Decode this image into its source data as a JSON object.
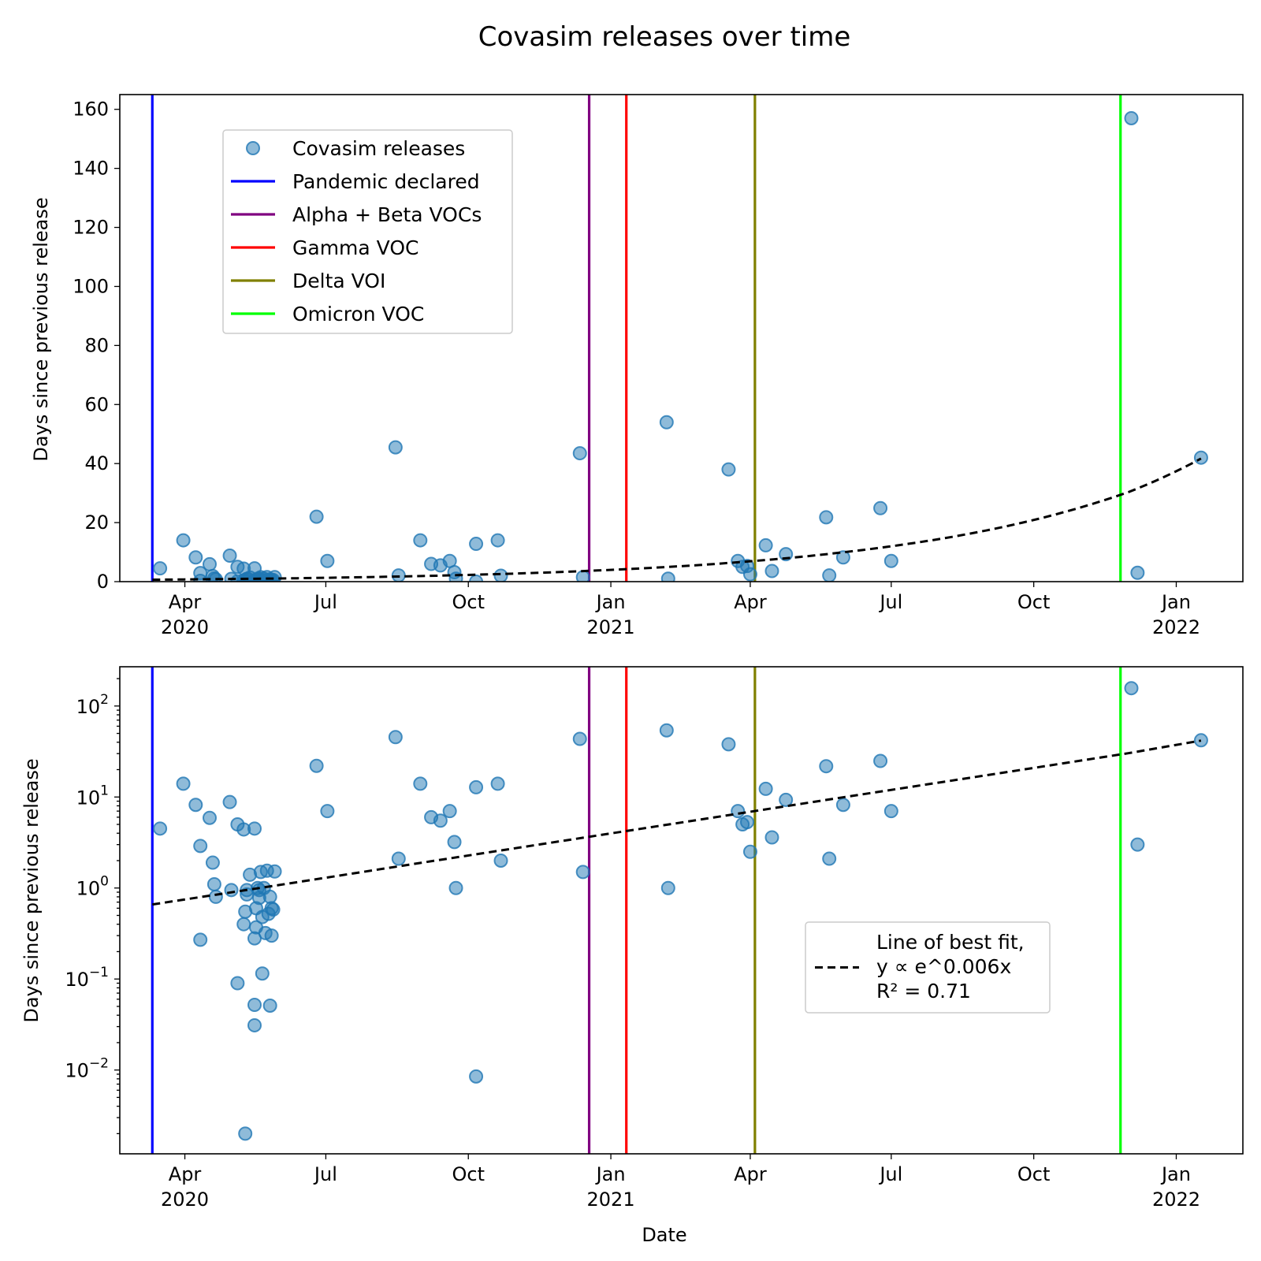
{
  "figure_title": "Covasim releases over time",
  "xlabel": "Date",
  "chart_data": [
    {
      "type": "scatter",
      "title": "",
      "ylabel": "Days since previous release",
      "yscale": "linear",
      "ylim": [
        0,
        165
      ],
      "yticks": [
        0,
        20,
        40,
        60,
        80,
        100,
        120,
        140,
        160
      ],
      "xlim": [
        "2020-02-19",
        "2022-02-13"
      ],
      "xticks": [
        {
          "date": "2020-04-01",
          "label": "Apr",
          "sublabel": "2020"
        },
        {
          "date": "2020-07-01",
          "label": "Jul",
          "sublabel": ""
        },
        {
          "date": "2020-10-01",
          "label": "Oct",
          "sublabel": ""
        },
        {
          "date": "2021-01-01",
          "label": "Jan",
          "sublabel": "2021"
        },
        {
          "date": "2021-04-01",
          "label": "Apr",
          "sublabel": ""
        },
        {
          "date": "2021-07-01",
          "label": "Jul",
          "sublabel": ""
        },
        {
          "date": "2021-10-01",
          "label": "Oct",
          "sublabel": ""
        },
        {
          "date": "2022-01-01",
          "label": "Jan",
          "sublabel": "2022"
        }
      ],
      "grid": false,
      "legend": {
        "placement": "upper-left",
        "entries": [
          {
            "label": "Covasim releases",
            "kind": "marker",
            "color": "#1f77b4"
          },
          {
            "label": "Pandemic declared",
            "kind": "line",
            "color": "#0000ff"
          },
          {
            "label": "Alpha + Beta VOCs",
            "kind": "line",
            "color": "#800080"
          },
          {
            "label": "Gamma VOC",
            "kind": "line",
            "color": "#ff0000"
          },
          {
            "label": "Delta VOI",
            "kind": "line",
            "color": "#808000"
          },
          {
            "label": "Omicron VOC",
            "kind": "line",
            "color": "#00ff00"
          }
        ]
      }
    },
    {
      "type": "scatter",
      "title": "",
      "ylabel": "Days since previous release",
      "yscale": "log",
      "ylim": [
        0.0012,
        270
      ],
      "yticks": [
        {
          "value": 0.01,
          "base": "10",
          "exp": "−2"
        },
        {
          "value": 0.1,
          "base": "10",
          "exp": "−1"
        },
        {
          "value": 1,
          "base": "10",
          "exp": "0"
        },
        {
          "value": 10,
          "base": "10",
          "exp": "1"
        },
        {
          "value": 100,
          "base": "10",
          "exp": "2"
        }
      ],
      "xlim": [
        "2020-02-19",
        "2022-02-13"
      ],
      "xticks": [
        {
          "date": "2020-04-01",
          "label": "Apr",
          "sublabel": "2020"
        },
        {
          "date": "2020-07-01",
          "label": "Jul",
          "sublabel": ""
        },
        {
          "date": "2020-10-01",
          "label": "Oct",
          "sublabel": ""
        },
        {
          "date": "2021-01-01",
          "label": "Jan",
          "sublabel": "2021"
        },
        {
          "date": "2021-04-01",
          "label": "Apr",
          "sublabel": ""
        },
        {
          "date": "2021-07-01",
          "label": "Jul",
          "sublabel": ""
        },
        {
          "date": "2021-10-01",
          "label": "Oct",
          "sublabel": ""
        },
        {
          "date": "2022-01-01",
          "label": "Jan",
          "sublabel": "2022"
        }
      ],
      "grid": false,
      "legend": {
        "placement": "lower-right",
        "entries": [
          {
            "label": "Line of best fit,\ny ∝ e^0.006x\nR² = 0.71",
            "kind": "dashed-line",
            "color": "#000000"
          }
        ]
      }
    }
  ],
  "events": [
    {
      "date": "2020-03-11",
      "color": "#0000ff"
    },
    {
      "date": "2020-12-18",
      "color": "#800080"
    },
    {
      "date": "2021-01-11",
      "color": "#ff0000"
    },
    {
      "date": "2021-04-04",
      "color": "#808000"
    },
    {
      "date": "2021-11-26",
      "color": "#00ff00"
    }
  ],
  "fit": {
    "points": [
      {
        "x": "2020-03-11",
        "y": 0.66
      },
      {
        "x": "2020-06-01",
        "y": 1.08
      },
      {
        "x": "2020-09-01",
        "y": 1.9
      },
      {
        "x": "2020-12-01",
        "y": 3.3
      },
      {
        "x": "2021-03-01",
        "y": 5.7
      },
      {
        "x": "2021-06-01",
        "y": 10.0
      },
      {
        "x": "2021-09-01",
        "y": 17.4
      },
      {
        "x": "2021-12-01",
        "y": 30.3
      },
      {
        "x": "2022-01-17",
        "y": 41.7
      }
    ]
  },
  "releases": [
    {
      "x": "2020-03-16",
      "y": 4.5
    },
    {
      "x": "2020-03-31",
      "y": 14.0
    },
    {
      "x": "2020-04-08",
      "y": 8.2
    },
    {
      "x": "2020-04-11",
      "y": 2.9
    },
    {
      "x": "2020-04-11",
      "y": 0.27
    },
    {
      "x": "2020-04-17",
      "y": 5.9
    },
    {
      "x": "2020-04-19",
      "y": 1.9
    },
    {
      "x": "2020-04-20",
      "y": 1.1
    },
    {
      "x": "2020-04-21",
      "y": 0.8
    },
    {
      "x": "2020-04-30",
      "y": 8.8
    },
    {
      "x": "2020-05-01",
      "y": 0.95
    },
    {
      "x": "2020-05-05",
      "y": 5.0
    },
    {
      "x": "2020-05-05",
      "y": 0.09
    },
    {
      "x": "2020-05-09",
      "y": 4.4
    },
    {
      "x": "2020-05-09",
      "y": 0.4
    },
    {
      "x": "2020-05-10",
      "y": 0.55
    },
    {
      "x": "2020-05-10",
      "y": 0.002
    },
    {
      "x": "2020-05-11",
      "y": 0.85
    },
    {
      "x": "2020-05-11",
      "y": 0.95
    },
    {
      "x": "2020-05-13",
      "y": 1.4
    },
    {
      "x": "2020-05-16",
      "y": 4.5
    },
    {
      "x": "2020-05-16",
      "y": 0.28
    },
    {
      "x": "2020-05-16",
      "y": 0.052
    },
    {
      "x": "2020-05-16",
      "y": 0.031
    },
    {
      "x": "2020-05-17",
      "y": 0.6
    },
    {
      "x": "2020-05-17",
      "y": 0.37
    },
    {
      "x": "2020-05-18",
      "y": 1.0
    },
    {
      "x": "2020-05-19",
      "y": 0.78
    },
    {
      "x": "2020-05-19",
      "y": 0.95
    },
    {
      "x": "2020-05-20",
      "y": 1.5
    },
    {
      "x": "2020-05-21",
      "y": 0.115
    },
    {
      "x": "2020-05-21",
      "y": 0.48
    },
    {
      "x": "2020-05-22",
      "y": 1.0
    },
    {
      "x": "2020-05-23",
      "y": 0.32
    },
    {
      "x": "2020-05-24",
      "y": 1.55
    },
    {
      "x": "2020-05-25",
      "y": 0.52
    },
    {
      "x": "2020-05-26",
      "y": 0.8
    },
    {
      "x": "2020-05-26",
      "y": 0.051
    },
    {
      "x": "2020-05-27",
      "y": 0.6
    },
    {
      "x": "2020-05-27",
      "y": 0.3
    },
    {
      "x": "2020-05-28",
      "y": 0.58
    },
    {
      "x": "2020-05-29",
      "y": 1.52
    },
    {
      "x": "2020-06-25",
      "y": 22.0
    },
    {
      "x": "2020-07-02",
      "y": 7.0
    },
    {
      "x": "2020-08-15",
      "y": 45.5
    },
    {
      "x": "2020-08-17",
      "y": 2.1
    },
    {
      "x": "2020-08-31",
      "y": 14.0
    },
    {
      "x": "2020-09-07",
      "y": 6.0
    },
    {
      "x": "2020-09-13",
      "y": 5.5
    },
    {
      "x": "2020-09-19",
      "y": 7.0
    },
    {
      "x": "2020-09-22",
      "y": 3.2
    },
    {
      "x": "2020-09-23",
      "y": 1.0
    },
    {
      "x": "2020-10-06",
      "y": 12.8
    },
    {
      "x": "2020-10-06",
      "y": 0.0085
    },
    {
      "x": "2020-10-20",
      "y": 14.0
    },
    {
      "x": "2020-10-22",
      "y": 2.0
    },
    {
      "x": "2020-12-12",
      "y": 43.5
    },
    {
      "x": "2020-12-14",
      "y": 1.5
    },
    {
      "x": "2021-02-06",
      "y": 54.0
    },
    {
      "x": "2021-02-07",
      "y": 1.0
    },
    {
      "x": "2021-03-18",
      "y": 38.0
    },
    {
      "x": "2021-03-24",
      "y": 7.0
    },
    {
      "x": "2021-03-27",
      "y": 5.0
    },
    {
      "x": "2021-03-30",
      "y": 5.3
    },
    {
      "x": "2021-04-01",
      "y": 2.5
    },
    {
      "x": "2021-04-11",
      "y": 12.3
    },
    {
      "x": "2021-04-15",
      "y": 3.6
    },
    {
      "x": "2021-04-24",
      "y": 9.3
    },
    {
      "x": "2021-05-20",
      "y": 21.8
    },
    {
      "x": "2021-05-22",
      "y": 2.1
    },
    {
      "x": "2021-05-31",
      "y": 8.2
    },
    {
      "x": "2021-06-24",
      "y": 24.9
    },
    {
      "x": "2021-07-01",
      "y": 7.0
    },
    {
      "x": "2021-12-03",
      "y": 157.0
    },
    {
      "x": "2021-12-07",
      "y": 3.0
    },
    {
      "x": "2022-01-17",
      "y": 42.0
    }
  ]
}
